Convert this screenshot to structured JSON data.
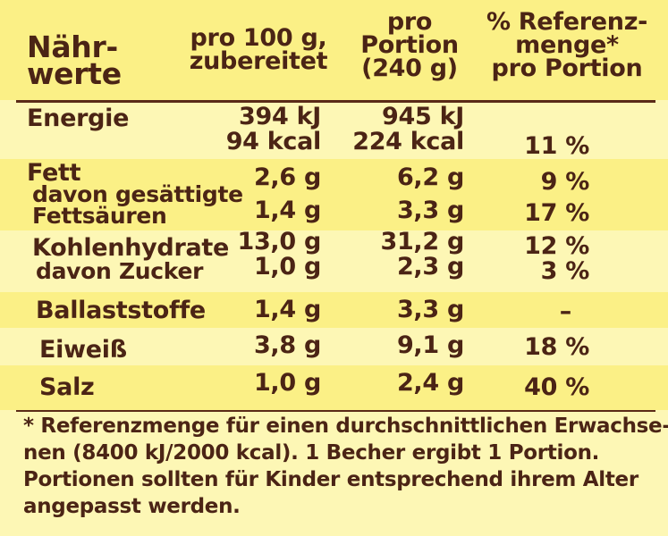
{
  "header": {
    "col0": [
      "Nähr-",
      "werte"
    ],
    "col1": [
      "pro 100 g,",
      "zubereitet"
    ],
    "col2": [
      "pro",
      "Portion",
      "(240 g)"
    ],
    "col3": [
      "% Referenz-",
      "menge*",
      "pro Portion"
    ]
  },
  "rows": {
    "energie": {
      "label": "Energie",
      "per100_kj": "394 kJ",
      "per100_kcal": "94 kcal",
      "portion_kj": "945 kJ",
      "portion_kcal": "224 kcal",
      "ri": "11 %"
    },
    "fett": {
      "label": "Fett",
      "per100": "2,6 g",
      "portion": "6,2 g",
      "ri": "9 %"
    },
    "gesaettigte": {
      "label_line1": "davon gesättigte",
      "label_line2": "Fettsäuren",
      "per100": "1,4 g",
      "portion": "3,3 g",
      "ri": "17 %"
    },
    "kohlenhydrate": {
      "label": "Kohlenhydrate",
      "per100": "13,0 g",
      "portion": "31,2 g",
      "ri": "12 %"
    },
    "zucker": {
      "label": "davon Zucker",
      "per100": "1,0 g",
      "portion": "2,3 g",
      "ri": "3 %"
    },
    "ballaststoffe": {
      "label": "Ballaststoffe",
      "per100": "1,4 g",
      "portion": "3,3 g",
      "ri": "–"
    },
    "eiweiss": {
      "label": "Eiweiß",
      "per100": "3,8 g",
      "portion": "9,1 g",
      "ri": "18 %"
    },
    "salz": {
      "label": "Salz",
      "per100": "1,0 g",
      "portion": "2,4 g",
      "ri": "40 %"
    }
  },
  "footnote": [
    "* Referenzmenge für einen durchschnittlichen Erwachse-",
    "nen (8400 kJ/2000 kcal). 1 Becher ergibt 1 Portion.",
    "Portionen sollten für Kinder entsprechend ihrem Alter",
    "angepasst werden."
  ],
  "colors": {
    "text": "#4b2415",
    "background": "#fdf7b5",
    "band": "#fbf086"
  }
}
